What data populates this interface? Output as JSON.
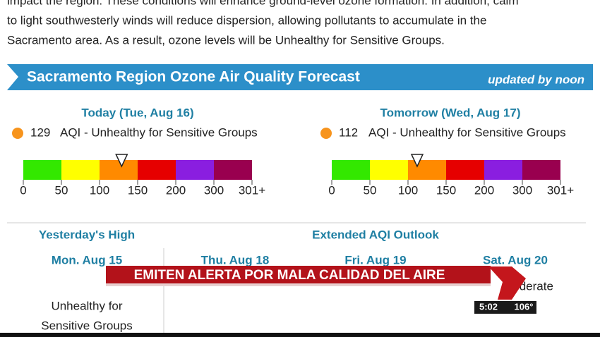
{
  "paragraph": [
    "impact the region. These conditions will enhance ground-level ozone formation. In addition, calm",
    "to light southwesterly winds will reduce dispersion, allowing pollutants to accumulate in the",
    "Sacramento area. As a result, ozone levels will be Unhealthy for Sensitive Groups."
  ],
  "banner": {
    "title": "Sacramento Region Ozone Air Quality Forecast",
    "updated": "updated by noon"
  },
  "forecasts": [
    {
      "heading": "Today (Tue, Aug 16)",
      "aqi": 129,
      "category": "AQI - Unhealthy for Sensitive Groups"
    },
    {
      "heading": "Tomorrow (Wed, Aug 17)",
      "aqi": 112,
      "category": "AQI - Unhealthy for Sensitive Groups"
    }
  ],
  "scale": {
    "ticks": [
      0,
      50,
      100,
      150,
      200,
      300,
      {
        "value": 301,
        "label": "301+"
      }
    ],
    "colors": [
      "#33e800",
      "#ffff00",
      "#ff8a00",
      "#e60000",
      "#8a1ee0",
      "#99004f"
    ]
  },
  "yesterday": {
    "heading": "Yesterday's High",
    "date": "Mon. Aug 15",
    "category_lines": [
      "Unhealthy for",
      "Sensitive Groups"
    ]
  },
  "outlook": {
    "heading": "Extended AQI Outlook",
    "days": [
      {
        "date": "Thu. Aug 18"
      },
      {
        "date": "Fri. Aug 19"
      },
      {
        "date": "Sat. Aug 20",
        "category": "Moderate"
      }
    ]
  },
  "overlay": {
    "headline": "EMITEN ALERTA POR MALA CALIDAD DEL AIRE",
    "time": "5:02",
    "temperature": "106°"
  }
}
